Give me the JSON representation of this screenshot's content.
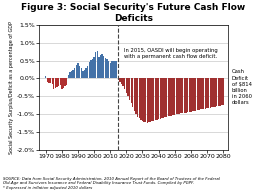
{
  "chart_data": {
    "type": "bar",
    "title": "Figure 3: Social Security's Future Cash Flow Deficits",
    "y_label": "Social Security Surplus/Deficit as a percentage of GDP",
    "annotations": [
      "In 2015, OASDI will begin operating\nwith a permanent cash flow deficit.",
      "Cash\nDeficit\nof $814\nbillion\nin 2060\ndollars",
      "SOURCE: Data from Social Security Administration, 2010 Annual Report of the Board of Trustees of the Federal\nOld-Age and Survivors Insurance and Federal Disability Insurance Trust Funds. Compiled by PGPF.\n* Expressed in inflation adjusted 2010 dollars"
    ],
    "vline": 2015,
    "x": [
      1970,
      1971,
      1972,
      1973,
      1974,
      1975,
      1976,
      1977,
      1978,
      1979,
      1980,
      1981,
      1982,
      1983,
      1984,
      1985,
      1986,
      1987,
      1988,
      1989,
      1990,
      1991,
      1992,
      1993,
      1994,
      1995,
      1996,
      1997,
      1998,
      1999,
      2000,
      2001,
      2002,
      2003,
      2004,
      2005,
      2006,
      2007,
      2008,
      2009,
      2010,
      2011,
      2012,
      2013,
      2014,
      2015,
      2016,
      2017,
      2018,
      2019,
      2020,
      2021,
      2022,
      2023,
      2024,
      2025,
      2026,
      2027,
      2028,
      2029,
      2030,
      2031,
      2032,
      2033,
      2034,
      2035,
      2036,
      2037,
      2038,
      2039,
      2040,
      2041,
      2042,
      2043,
      2044,
      2045,
      2046,
      2047,
      2048,
      2049,
      2050,
      2051,
      2052,
      2053,
      2054,
      2055,
      2056,
      2057,
      2058,
      2059,
      2060,
      2061,
      2062,
      2063,
      2064,
      2065,
      2066,
      2067,
      2068,
      2069,
      2070,
      2071,
      2072,
      2073,
      2074,
      2075,
      2076,
      2077,
      2078,
      2079,
      2080
    ],
    "values": [
      0.06,
      -0.1,
      -0.12,
      -0.13,
      -0.16,
      -0.3,
      -0.28,
      -0.25,
      -0.2,
      -0.18,
      -0.3,
      -0.28,
      -0.22,
      -0.18,
      0.1,
      0.18,
      0.2,
      0.25,
      0.3,
      0.38,
      0.42,
      0.35,
      0.28,
      0.22,
      0.25,
      0.28,
      0.35,
      0.45,
      0.52,
      0.55,
      0.6,
      0.75,
      0.78,
      0.6,
      0.65,
      0.68,
      0.62,
      0.58,
      0.55,
      0.5,
      0.42,
      0.48,
      0.5,
      0.48,
      0.5,
      -0.05,
      -0.1,
      -0.15,
      -0.22,
      -0.3,
      -0.4,
      -0.5,
      -0.6,
      -0.7,
      -0.8,
      -0.9,
      -1.0,
      -1.07,
      -1.12,
      -1.17,
      -1.2,
      -1.22,
      -1.23,
      -1.24,
      -1.23,
      -1.22,
      -1.2,
      -1.19,
      -1.17,
      -1.16,
      -1.15,
      -1.13,
      -1.11,
      -1.1,
      -1.09,
      -1.08,
      -1.06,
      -1.05,
      -1.04,
      -1.03,
      -1.02,
      -1.01,
      -1.0,
      -0.99,
      -0.98,
      -0.97,
      -0.96,
      -0.96,
      -0.95,
      -0.94,
      -0.93,
      -0.92,
      -0.91,
      -0.9,
      -0.89,
      -0.88,
      -0.87,
      -0.87,
      -0.86,
      -0.85,
      -0.84,
      -0.83,
      -0.82,
      -0.81,
      -0.8,
      -0.79,
      -0.78,
      -0.77,
      -0.76,
      -0.75,
      -0.74
    ],
    "colors": [
      "#4472a8",
      "#b03030",
      "#b03030",
      "#b03030",
      "#b03030",
      "#b03030",
      "#b03030",
      "#b03030",
      "#b03030",
      "#b03030",
      "#b03030",
      "#b03030",
      "#b03030",
      "#b03030",
      "#4472a8",
      "#4472a8",
      "#4472a8",
      "#4472a8",
      "#4472a8",
      "#4472a8",
      "#4472a8",
      "#4472a8",
      "#4472a8",
      "#4472a8",
      "#4472a8",
      "#4472a8",
      "#4472a8",
      "#4472a8",
      "#4472a8",
      "#4472a8",
      "#4472a8",
      "#4472a8",
      "#4472a8",
      "#4472a8",
      "#4472a8",
      "#4472a8",
      "#4472a8",
      "#4472a8",
      "#4472a8",
      "#4472a8",
      "#4472a8",
      "#4472a8",
      "#4472a8",
      "#4472a8",
      "#4472a8",
      "#a03030",
      "#a03030",
      "#a03030",
      "#a03030",
      "#a03030",
      "#a03030",
      "#a03030",
      "#a03030",
      "#a03030",
      "#a03030",
      "#a03030",
      "#a03030",
      "#a03030",
      "#a03030",
      "#a03030",
      "#a03030",
      "#a03030",
      "#a03030",
      "#a03030",
      "#a03030",
      "#a03030",
      "#a03030",
      "#a03030",
      "#a03030",
      "#a03030",
      "#a03030",
      "#a03030",
      "#a03030",
      "#a03030",
      "#a03030",
      "#a03030",
      "#a03030",
      "#a03030",
      "#a03030",
      "#a03030",
      "#a03030",
      "#a03030",
      "#a03030",
      "#a03030",
      "#a03030",
      "#a03030",
      "#a03030",
      "#a03030",
      "#a03030",
      "#a03030",
      "#a03030",
      "#a03030",
      "#a03030",
      "#a03030",
      "#a03030",
      "#a03030",
      "#a03030",
      "#a03030",
      "#a03030",
      "#a03030",
      "#a03030",
      "#a03030",
      "#a03030",
      "#a03030",
      "#a03030",
      "#a03030",
      "#a03030",
      "#a03030",
      "#a03030",
      "#a03030",
      "#a03030",
      "#a03030",
      "#a03030",
      "#a03030"
    ],
    "xlim": [
      1966,
      2083
    ],
    "xticks": [
      1970,
      1980,
      1990,
      2000,
      2010,
      2020,
      2030,
      2040,
      2050,
      2060,
      2070,
      2080
    ],
    "ylim": [
      -2.0,
      1.5
    ],
    "yticks": [
      {
        "value": -2.0,
        "label": "-2.0%"
      },
      {
        "value": -1.5,
        "label": "-1.5%"
      },
      {
        "value": -1.0,
        "label": "-1.0%"
      },
      {
        "value": -0.5,
        "label": "-0.5%"
      },
      {
        "value": 0.0,
        "label": "0.0%"
      },
      {
        "value": 0.5,
        "label": "0.5%"
      },
      {
        "value": 1.0,
        "label": "1.0%"
      },
      {
        "value": 1.5,
        "label": "1.5%"
      }
    ],
    "grid": "y"
  }
}
